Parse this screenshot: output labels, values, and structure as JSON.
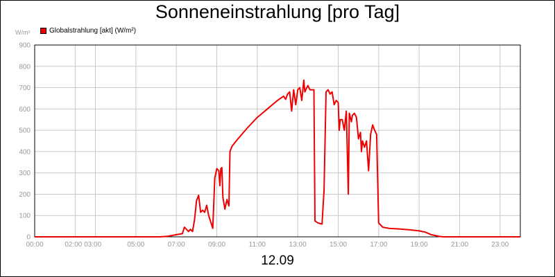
{
  "title": "Sonneneinstrahlung [pro Tag]",
  "date_label": "12.09",
  "chart_data": {
    "type": "line",
    "title": "Sonneneinstrahlung [pro Tag]",
    "ylabel": "W/m²",
    "xlabel": "",
    "ylim": [
      0,
      900
    ],
    "xlim": [
      0,
      24
    ],
    "grid": true,
    "legend_position": "top-left",
    "y_ticks": [
      0,
      100,
      200,
      300,
      400,
      500,
      600,
      700,
      800,
      900
    ],
    "x_ticks": [
      {
        "v": 0,
        "label": "00:00"
      },
      {
        "v": 2,
        "label": "02:00 03:00"
      },
      {
        "v": 5,
        "label": "05:00"
      },
      {
        "v": 7,
        "label": "07:00"
      },
      {
        "v": 9,
        "label": "09:00"
      },
      {
        "v": 11,
        "label": "11:00"
      },
      {
        "v": 13,
        "label": "13:00"
      },
      {
        "v": 15,
        "label": "15:00"
      },
      {
        "v": 17,
        "label": "17:00"
      },
      {
        "v": 19,
        "label": "19:00"
      },
      {
        "v": 21,
        "label": "21:00"
      },
      {
        "v": 23,
        "label": "23:00"
      }
    ],
    "x_grid": [
      0,
      2,
      3,
      5,
      7,
      9,
      11,
      13,
      15,
      17,
      19,
      21,
      23
    ],
    "series": [
      {
        "name": "Globalstrahlung [akt] (W/m²)",
        "color": "#ee0000",
        "points": [
          [
            0,
            0
          ],
          [
            6.2,
            0
          ],
          [
            6.6,
            3
          ],
          [
            7.0,
            10
          ],
          [
            7.3,
            15
          ],
          [
            7.4,
            45
          ],
          [
            7.5,
            35
          ],
          [
            7.6,
            25
          ],
          [
            7.7,
            35
          ],
          [
            7.8,
            25
          ],
          [
            7.9,
            80
          ],
          [
            8.0,
            170
          ],
          [
            8.1,
            195
          ],
          [
            8.2,
            115
          ],
          [
            8.3,
            125
          ],
          [
            8.4,
            115
          ],
          [
            8.5,
            148
          ],
          [
            8.6,
            100
          ],
          [
            8.8,
            40
          ],
          [
            8.9,
            275
          ],
          [
            9.0,
            320
          ],
          [
            9.1,
            310
          ],
          [
            9.15,
            240
          ],
          [
            9.2,
            320
          ],
          [
            9.25,
            325
          ],
          [
            9.3,
            185
          ],
          [
            9.4,
            130
          ],
          [
            9.5,
            175
          ],
          [
            9.6,
            145
          ],
          [
            9.65,
            400
          ],
          [
            9.75,
            425
          ],
          [
            10.0,
            455
          ],
          [
            10.5,
            510
          ],
          [
            11.0,
            560
          ],
          [
            11.5,
            600
          ],
          [
            12.0,
            640
          ],
          [
            12.3,
            660
          ],
          [
            12.4,
            645
          ],
          [
            12.5,
            670
          ],
          [
            12.6,
            680
          ],
          [
            12.7,
            590
          ],
          [
            12.8,
            690
          ],
          [
            12.9,
            620
          ],
          [
            13.0,
            690
          ],
          [
            13.1,
            700
          ],
          [
            13.2,
            640
          ],
          [
            13.3,
            735
          ],
          [
            13.35,
            680
          ],
          [
            13.4,
            690
          ],
          [
            13.5,
            710
          ],
          [
            13.6,
            690
          ],
          [
            13.8,
            690
          ],
          [
            13.85,
            75
          ],
          [
            14.0,
            65
          ],
          [
            14.2,
            60
          ],
          [
            14.3,
            220
          ],
          [
            14.4,
            680
          ],
          [
            14.5,
            690
          ],
          [
            14.6,
            670
          ],
          [
            14.7,
            680
          ],
          [
            14.8,
            620
          ],
          [
            14.9,
            640
          ],
          [
            15.0,
            630
          ],
          [
            15.05,
            500
          ],
          [
            15.1,
            550
          ],
          [
            15.2,
            550
          ],
          [
            15.3,
            500
          ],
          [
            15.4,
            590
          ],
          [
            15.5,
            200
          ],
          [
            15.55,
            580
          ],
          [
            15.65,
            540
          ],
          [
            15.7,
            570
          ],
          [
            15.8,
            580
          ],
          [
            15.9,
            560
          ],
          [
            16.0,
            460
          ],
          [
            16.1,
            490
          ],
          [
            16.15,
            400
          ],
          [
            16.2,
            450
          ],
          [
            16.3,
            420
          ],
          [
            16.4,
            450
          ],
          [
            16.5,
            310
          ],
          [
            16.6,
            480
          ],
          [
            16.7,
            525
          ],
          [
            16.8,
            500
          ],
          [
            16.9,
            480
          ],
          [
            17.0,
            65
          ],
          [
            17.2,
            45
          ],
          [
            17.5,
            40
          ],
          [
            18.0,
            37
          ],
          [
            18.5,
            33
          ],
          [
            19.0,
            28
          ],
          [
            19.3,
            22
          ],
          [
            19.6,
            10
          ],
          [
            20.0,
            2
          ],
          [
            20.2,
            0
          ],
          [
            24,
            0
          ]
        ]
      }
    ]
  }
}
